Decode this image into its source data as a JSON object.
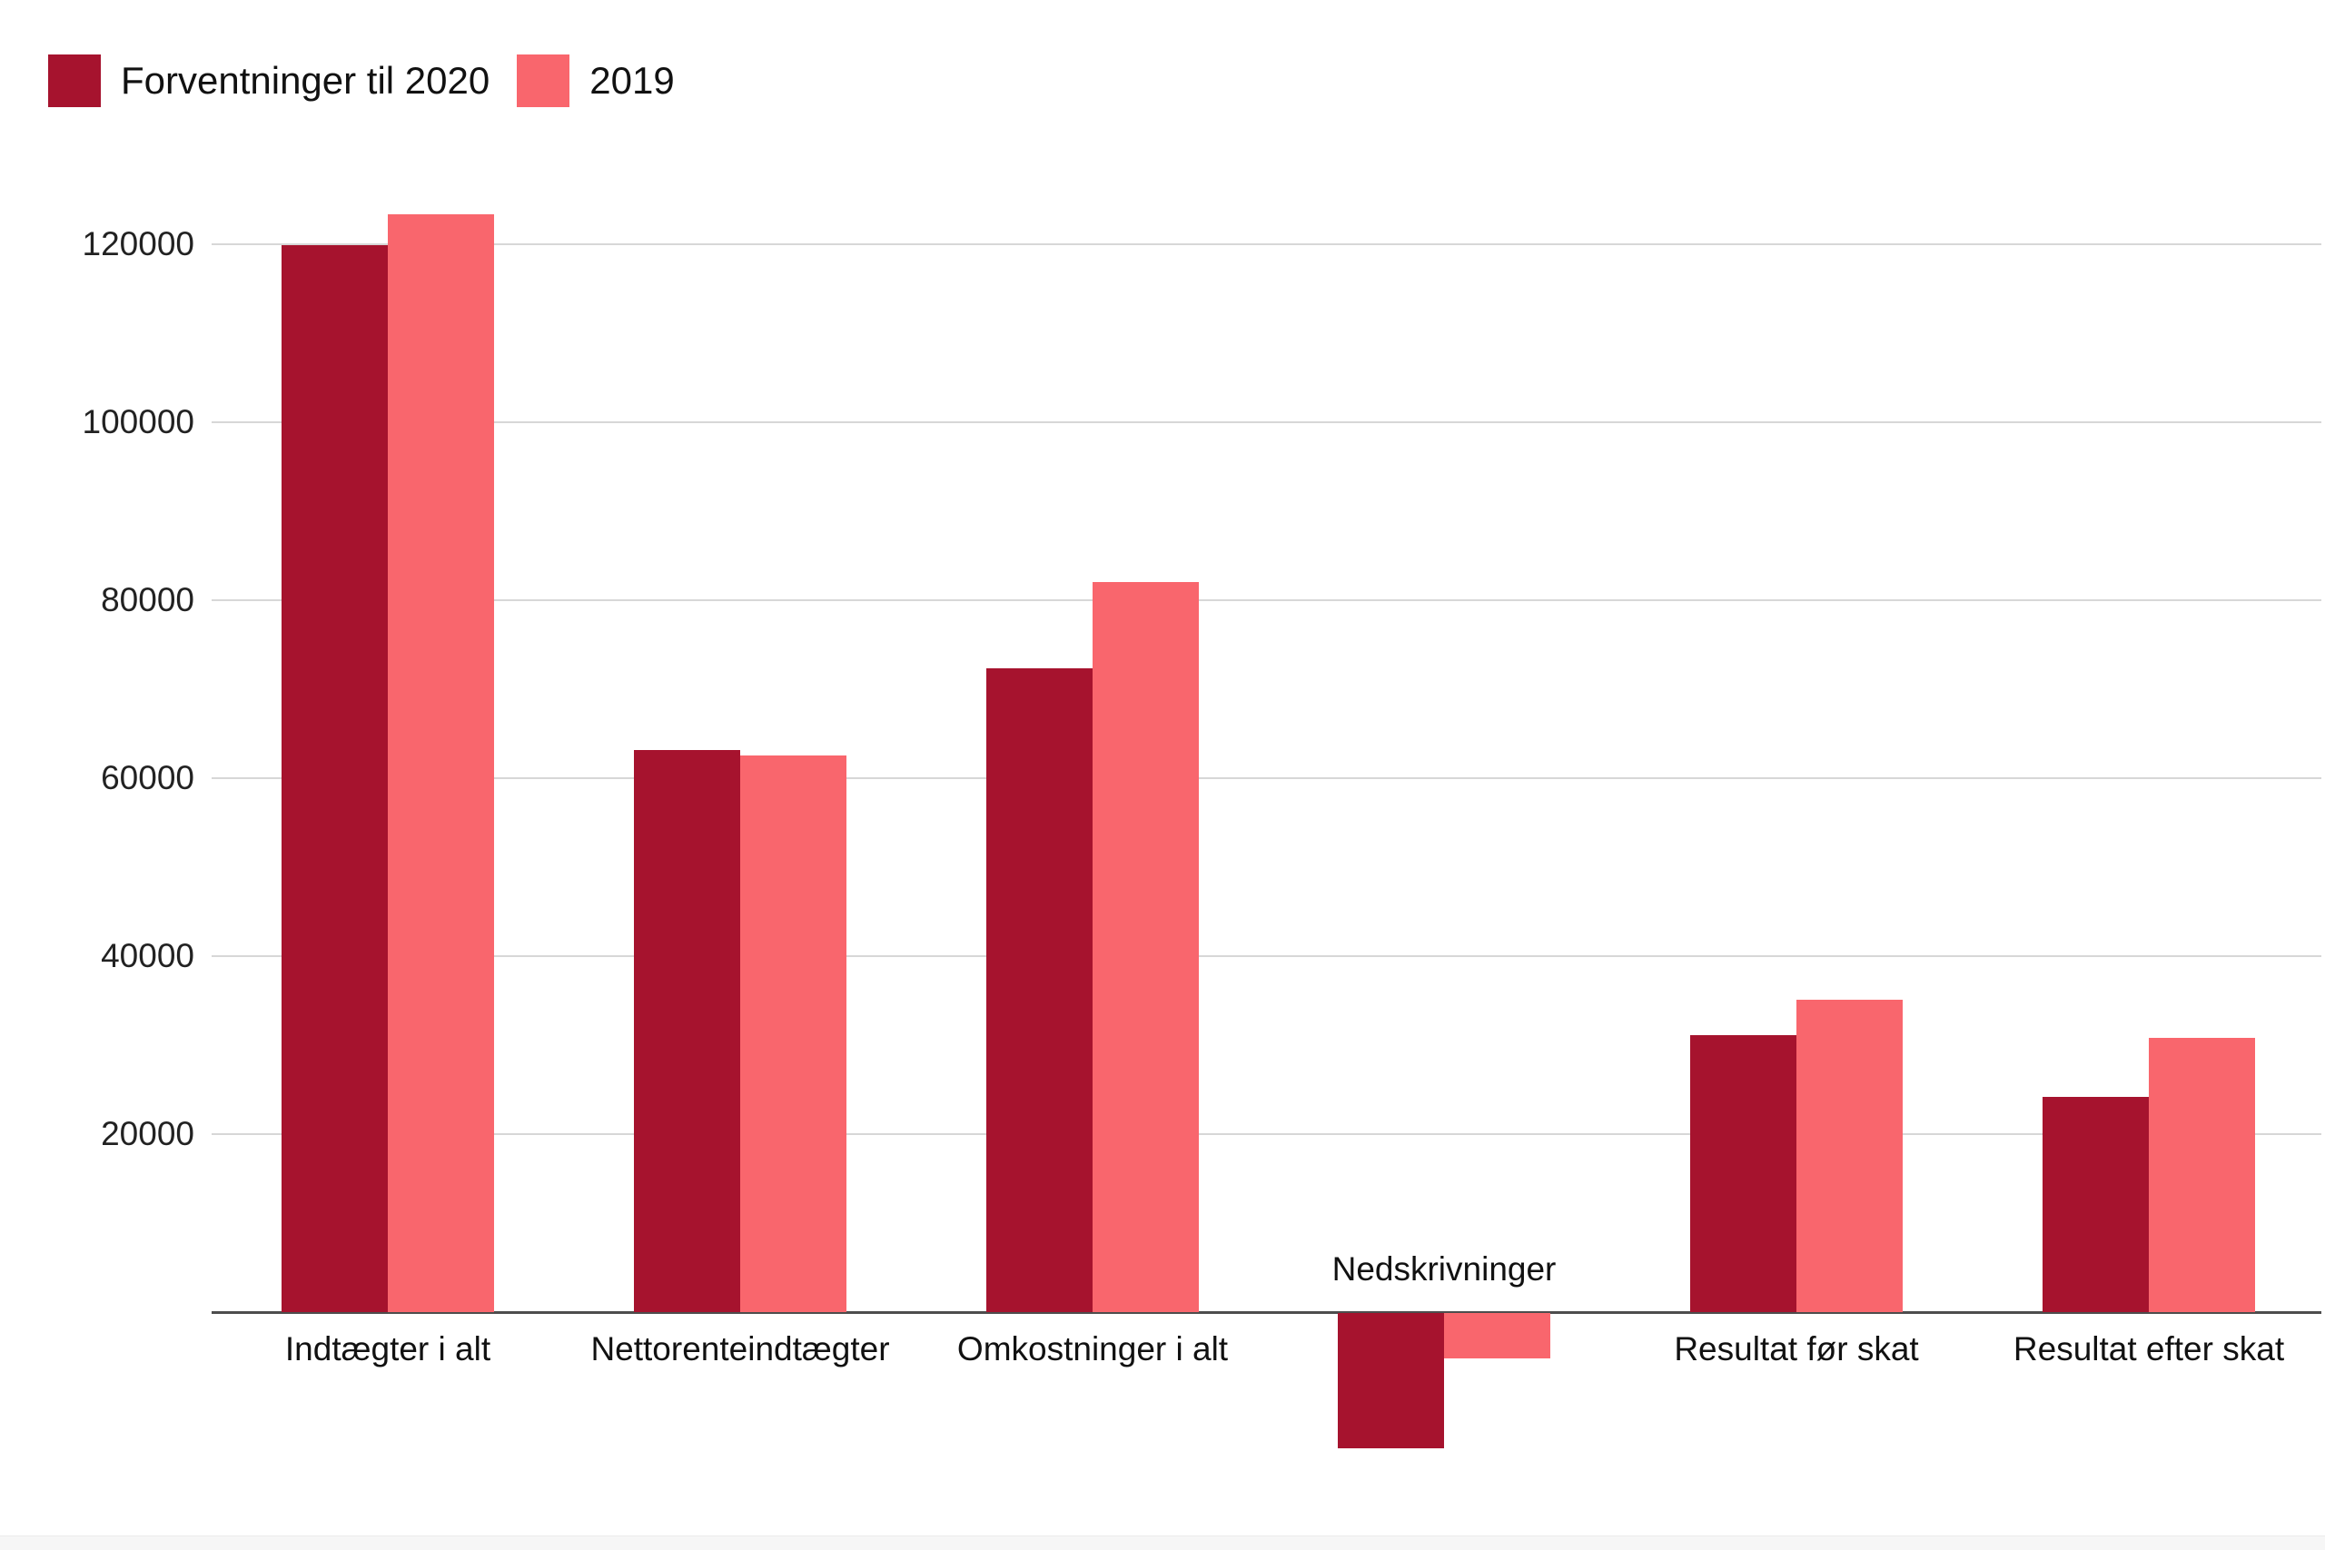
{
  "legend": {
    "items": [
      {
        "label": "Forventninger til 2020",
        "color": "#a6132e"
      },
      {
        "label": "2019",
        "color": "#f9666d"
      }
    ]
  },
  "chart_data": {
    "type": "bar",
    "title": "",
    "xlabel": "",
    "ylabel": "",
    "categories": [
      "Indtægter i alt",
      "Nettorenteindtægter",
      "Omkostninger i alt",
      "Nedskrivninger",
      "Resultat før skat",
      "Resultat efter skat"
    ],
    "series": [
      {
        "name": "Forventninger til 2020",
        "color": "#a6132e",
        "values": [
          119900,
          63200,
          72300,
          -15200,
          31100,
          24200
        ]
      },
      {
        "name": "2019",
        "color": "#f9666d",
        "values": [
          123400,
          62600,
          82000,
          -5100,
          35100,
          30800
        ]
      }
    ],
    "yticks": [
      20000,
      40000,
      60000,
      80000,
      100000,
      120000
    ],
    "ylim": [
      -20000,
      128000
    ],
    "grid": true,
    "legend_position": "top-left",
    "categories_labeled_above_axis": [
      "Nedskrivninger"
    ],
    "colors": {
      "gridline": "#d7d7d7",
      "axis_line": "#4d4d4d",
      "text": "#1d1d1d"
    }
  }
}
